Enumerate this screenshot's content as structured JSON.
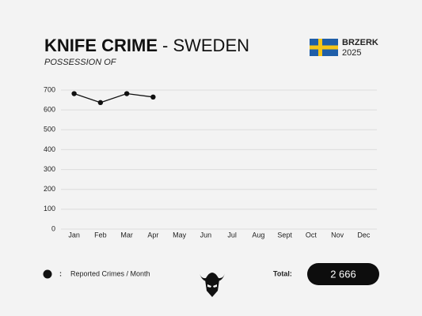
{
  "header": {
    "title": "KNIFE CRIME",
    "title_suffix": "- SWEDEN",
    "subtitle": "POSSESSION OF",
    "brand": "BRZERK",
    "year": "2025"
  },
  "legend": {
    "separator": ":"
  },
  "total": {
    "label": "Total:",
    "value": "2 666"
  },
  "chart_data": {
    "type": "line",
    "categories": [
      "Jan",
      "Feb",
      "Mar",
      "Apr",
      "May",
      "Jun",
      "Jul",
      "Aug",
      "Sept",
      "Oct",
      "Nov",
      "Dec"
    ],
    "series": [
      {
        "name": "Reported Crimes / Month",
        "color": "#111111",
        "values": [
          682,
          637,
          682,
          665,
          null,
          null,
          null,
          null,
          null,
          null,
          null,
          null
        ]
      }
    ],
    "ylim": [
      0,
      700
    ],
    "yticks": [
      0,
      100,
      200,
      300,
      400,
      500,
      600,
      700
    ],
    "grid": true
  }
}
